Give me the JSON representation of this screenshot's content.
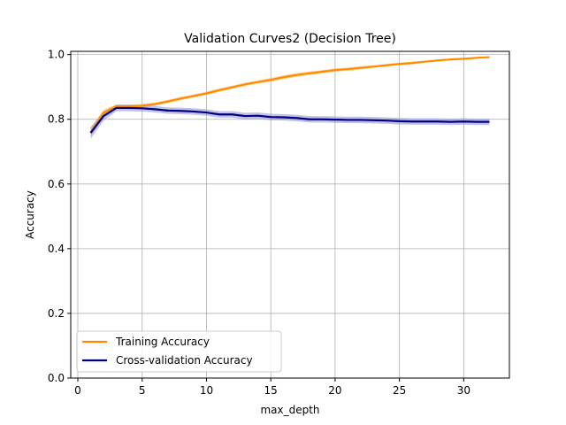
{
  "chart_data": {
    "type": "line",
    "title": "Validation Curves2 (Decision Tree)",
    "xlabel": "max_depth",
    "ylabel": "Accuracy",
    "xlim": [
      -0.55,
      33.55
    ],
    "ylim": [
      0.0,
      1.01
    ],
    "xticks": [
      0,
      5,
      10,
      15,
      20,
      25,
      30
    ],
    "yticks": [
      0.0,
      0.2,
      0.4,
      0.6,
      0.8,
      1.0
    ],
    "xtick_labels": [
      "0",
      "5",
      "10",
      "15",
      "20",
      "25",
      "30"
    ],
    "ytick_labels": [
      "0.0",
      "0.2",
      "0.4",
      "0.6",
      "0.8",
      "1.0"
    ],
    "grid": true,
    "legend_position": "lower-left",
    "x": [
      1,
      2,
      3,
      4,
      5,
      6,
      7,
      8,
      9,
      10,
      11,
      12,
      13,
      14,
      15,
      16,
      17,
      18,
      19,
      20,
      21,
      22,
      23,
      24,
      25,
      26,
      27,
      28,
      29,
      30,
      31,
      32
    ],
    "series": [
      {
        "name": "Training Accuracy",
        "color": "#ff8c00",
        "band_color": "#ffb54d",
        "values": [
          0.76,
          0.82,
          0.84,
          0.84,
          0.842,
          0.847,
          0.855,
          0.864,
          0.872,
          0.88,
          0.89,
          0.899,
          0.908,
          0.915,
          0.922,
          0.93,
          0.937,
          0.942,
          0.947,
          0.952,
          0.955,
          0.959,
          0.963,
          0.967,
          0.971,
          0.974,
          0.978,
          0.982,
          0.985,
          0.987,
          0.99,
          0.992
        ],
        "band": [
          0.012,
          0.01,
          0.006,
          0.005,
          0.005,
          0.005,
          0.005,
          0.005,
          0.005,
          0.005,
          0.005,
          0.005,
          0.005,
          0.005,
          0.006,
          0.006,
          0.006,
          0.006,
          0.005,
          0.005,
          0.005,
          0.005,
          0.004,
          0.004,
          0.004,
          0.004,
          0.003,
          0.003,
          0.003,
          0.003,
          0.002,
          0.002
        ]
      },
      {
        "name": "Cross-validation Accuracy",
        "color": "#000080",
        "band_color": "#8f8fd6",
        "values": [
          0.758,
          0.81,
          0.835,
          0.835,
          0.834,
          0.831,
          0.827,
          0.826,
          0.824,
          0.821,
          0.815,
          0.815,
          0.81,
          0.811,
          0.807,
          0.806,
          0.804,
          0.8,
          0.8,
          0.799,
          0.798,
          0.798,
          0.797,
          0.796,
          0.794,
          0.793,
          0.793,
          0.793,
          0.792,
          0.793,
          0.792,
          0.792
        ],
        "band": [
          0.018,
          0.014,
          0.01,
          0.01,
          0.01,
          0.01,
          0.01,
          0.01,
          0.01,
          0.01,
          0.01,
          0.01,
          0.01,
          0.01,
          0.01,
          0.01,
          0.01,
          0.01,
          0.01,
          0.01,
          0.01,
          0.01,
          0.01,
          0.01,
          0.01,
          0.01,
          0.01,
          0.01,
          0.01,
          0.01,
          0.01,
          0.01
        ]
      }
    ]
  }
}
